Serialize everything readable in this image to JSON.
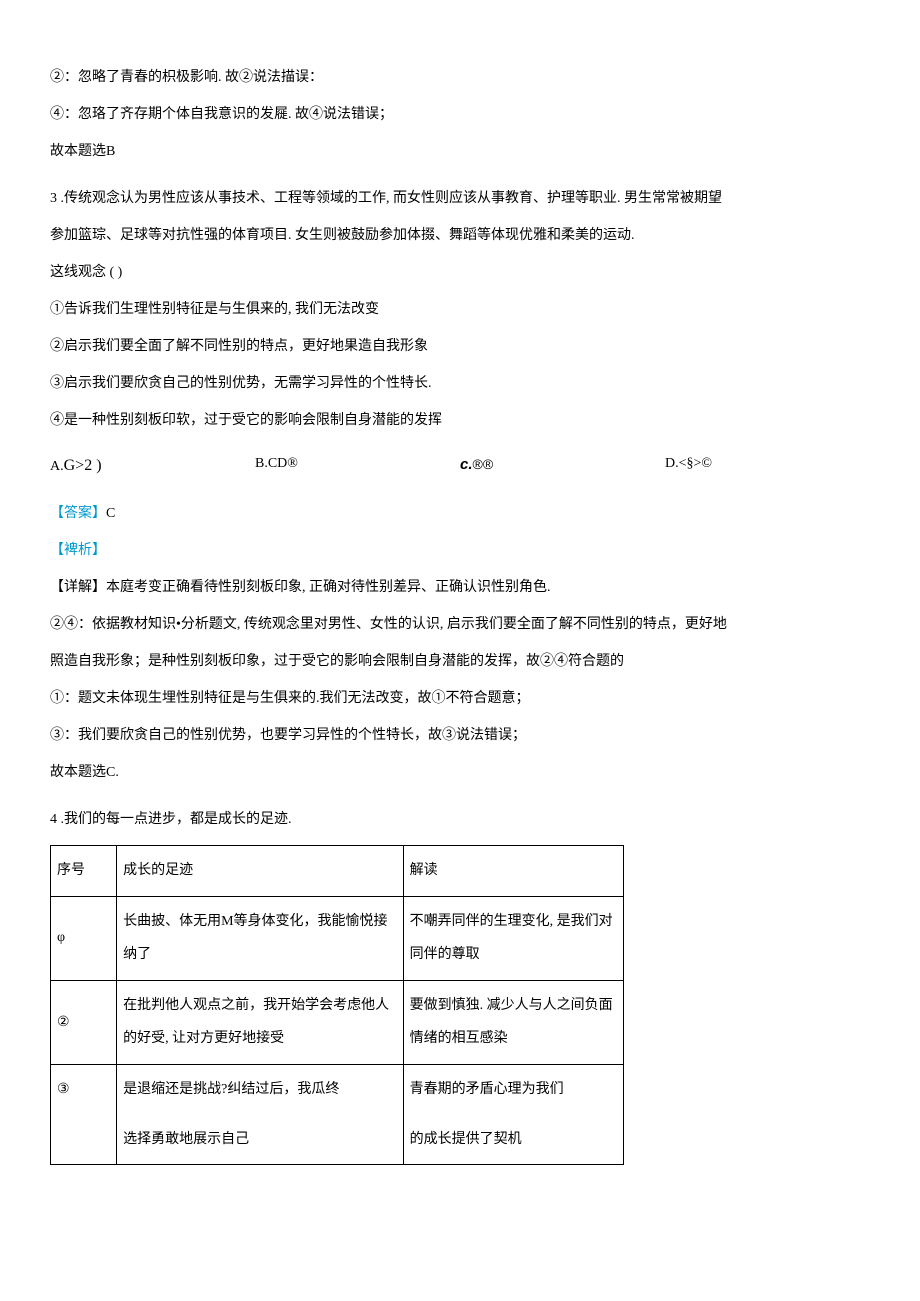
{
  "pre": {
    "line1": "②：忽略了青春的枳极影响. 故②说法描误：",
    "line2": "④：忽珞了齐存期个体自我意识的发屣. 故④说法错误；",
    "line3": "故本题选B"
  },
  "q3": {
    "num": "3",
    "stem1": " .传统观念认为男性应该从事技术、工程等领域的工作, 而女性则应该从事教育、护理等职业. 男生常常被期望",
    "stem2": "参加篮琮、足球等对抗性强的体育项目. 女生则被鼓励参加体掇、舞蹈等体现优雅和柔美的运动.",
    "stem3": "这线观念 ( )",
    "c1": "①告诉我们生理性别特征是与生俱来的, 我们无法改变",
    "c2": "②启示我们要全面了解不同性别的特点，更好地果造自我形象",
    "c3": "③启示我们要欣贪自己的性别优势，无需学习异性的个性特长.",
    "c4": "④是一种性别刻板印软，过于受它的影响会限制自身潜能的发挥",
    "optA_label": "A.",
    "optA_text": "G>2 )",
    "optB_label": "B.",
    "optB_text": "CD®",
    "optC_label": "c.",
    "optC_text": "®®",
    "optD_label": "D.",
    "optD_text": "<§>©",
    "answer_label": "【答案】",
    "answer_val": "C",
    "analysis_label": "【裨析】",
    "exp1": "【详解】本庭考变正确看待性别刻板印象, 正确对待性别差异、正确认识性别角色.",
    "exp2": "②④：依据教材知识•分析题文, 传统观念里对男性、女性的认识, 启示我们要全面了解不同性别的特点，更好地",
    "exp3": "照造自我形象；是种性别刻板印象，过于受它的影响会限制自身潜能的发挥，故②④符合题的",
    "exp4": "①：题文未体现生埋性别特征是与生俱来的.我们无法改变，故①不符合题意；",
    "exp5": "③：我们要欣贪自己的性别优势，也要学习异性的个性特长，故③说法错误；",
    "exp6": "故本题选C."
  },
  "q4": {
    "num": "4",
    "stem": " .我们的每一点进步，都是成长的足迹.",
    "table": {
      "h1": "序号",
      "h2": "成长的足迹",
      "h3": "解读",
      "r1": {
        "num": "φ",
        "trace": "长曲披、体无用M等身体变化，我能愉悦接纳了",
        "read": "不嘲弄同伴的生理变化, 是我们对同伴的尊取"
      },
      "r2": {
        "num": "②",
        "trace": "在批判他人观点之前，我开始学会考虑他人的好受, 让对方更好地接受",
        "read": "要做到慎独. 减少人与人之间负面情绪的相互感染"
      },
      "r3": {
        "num": "③",
        "trace": "是退缩还是挑战?纠结过后，我瓜终",
        "read": "青春期的矛盾心理为我们"
      },
      "r4": {
        "trace": "选择勇敢地展示自己",
        "read": "的成长提供了契机"
      }
    }
  }
}
